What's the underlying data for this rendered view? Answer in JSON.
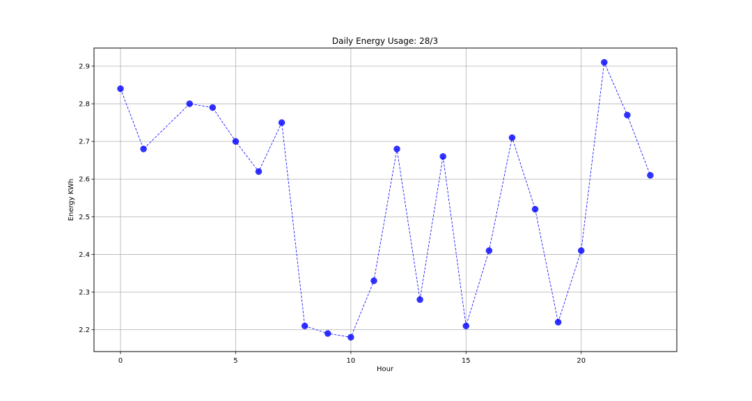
{
  "chart_data": {
    "type": "line",
    "title": "Daily Energy Usage: 28/3",
    "xlabel": "Hour",
    "ylabel": "Energy KWh",
    "xlim": [
      -1.15,
      24.15
    ],
    "ylim": [
      2.142,
      2.948
    ],
    "x_ticks": [
      0,
      5,
      10,
      15,
      20
    ],
    "y_ticks": [
      2.2,
      2.3,
      2.4,
      2.5,
      2.6,
      2.7,
      2.8,
      2.9
    ],
    "grid": true,
    "series": [
      {
        "line_style": "dashed",
        "marker": "circle",
        "color": "#0000ff",
        "x": [
          0,
          1,
          3,
          4,
          5,
          6,
          7,
          8,
          9,
          10,
          11,
          12,
          13,
          14,
          15,
          16,
          17,
          18,
          19,
          20,
          21,
          22,
          23
        ],
        "values": [
          2.84,
          2.68,
          2.8,
          2.79,
          2.7,
          2.62,
          2.75,
          2.21,
          2.19,
          2.18,
          2.33,
          2.68,
          2.28,
          2.66,
          2.21,
          2.41,
          2.71,
          2.52,
          2.22,
          2.41,
          2.91,
          2.77,
          2.61
        ]
      }
    ]
  }
}
